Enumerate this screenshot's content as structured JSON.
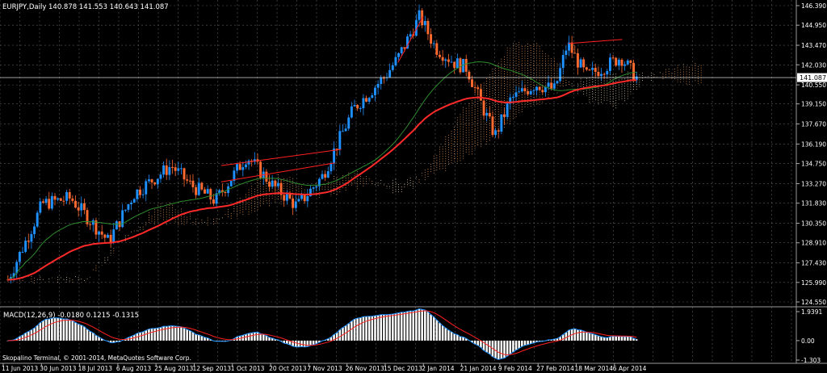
{
  "window": {
    "symbol_caption": "EURJPY,Daily",
    "ohlc_caption": "140.878 141.553 140.643 141.087",
    "copyright": "Skopalino Terminal, © 2001-2014, MetaQuotes Software Corp."
  },
  "colors": {
    "background": "#000000",
    "grid": "#5a5a5a",
    "bull_candle": "#1e90ff",
    "bear_candle": "#ff6a30",
    "ma_fast": "#2e8b2e",
    "ma_slow": "#ff2a2a",
    "cloud_a": "#f4a460",
    "cloud_b": "#f5deb3",
    "macd_line": "#1e90ff",
    "signal_line": "#ff2020",
    "histogram": "#ffffff",
    "price_label": "#ffffff"
  },
  "main_pane": {
    "current_price": "141.087",
    "price_axis_labels": [
      "146.390",
      "144.950",
      "143.470",
      "142.030",
      "140.550",
      "139.150",
      "137.670",
      "136.190",
      "134.750",
      "133.270",
      "131.830",
      "130.350",
      "128.910",
      "127.430",
      "125.990",
      "124.550"
    ]
  },
  "macd_pane": {
    "caption": "MACD(12,26,9) -0.0180 0.1215 -0.1315",
    "axis_labels": [
      "1.9391",
      "0.00",
      "-1.303"
    ]
  },
  "time_axis": {
    "labels": [
      "11 Jun 2013",
      "30 Jun 2013",
      "18 Jul 2013",
      "6 Aug 2013",
      "25 Aug 2013",
      "12 Sep 2013",
      "1 Oct 2013",
      "20 Oct 2013",
      "7 Nov 2013",
      "26 Nov 2013",
      "15 Dec 2013",
      "2 Jan 2014",
      "21 Jan 2014",
      "9 Feb 2014",
      "27 Feb 2014",
      "18 Mar 2014",
      "6 Apr 2014"
    ]
  },
  "chart_data": {
    "type": "candlestick",
    "instrument": "EURJPY",
    "timeframe": "Daily",
    "ylim": [
      124.55,
      146.39
    ],
    "last": {
      "open": 140.878,
      "high": 141.553,
      "low": 140.643,
      "close": 141.087
    },
    "close_series_approx": [
      {
        "date": "11 Jun 2013",
        "close": 127.5
      },
      {
        "date": "30 Jun 2013",
        "close": 130.0
      },
      {
        "date": "18 Jul 2013",
        "close": 131.5
      },
      {
        "date": "6 Aug 2013",
        "close": 129.6
      },
      {
        "date": "25 Aug 2013",
        "close": 131.0
      },
      {
        "date": "12 Sep 2013",
        "close": 133.8
      },
      {
        "date": "1 Oct 2013",
        "close": 132.0
      },
      {
        "date": "20 Oct 2013",
        "close": 134.3
      },
      {
        "date": "7 Nov 2013",
        "close": 132.5
      },
      {
        "date": "26 Nov 2013",
        "close": 139.0
      },
      {
        "date": "15 Dec 2013",
        "close": 142.0
      },
      {
        "date": "2 Jan 2014",
        "close": 144.0
      },
      {
        "date": "21 Jan 2014",
        "close": 141.5
      },
      {
        "date": "9 Feb 2014",
        "close": 139.5
      },
      {
        "date": "27 Feb 2014",
        "close": 140.0
      },
      {
        "date": "18 Mar 2014",
        "close": 141.0
      },
      {
        "date": "6 Apr 2014",
        "close": 141.087
      }
    ],
    "macd": {
      "main": -0.018,
      "signal": 0.1215,
      "histogram": -0.1315,
      "ylim": [
        -1.303,
        1.9391
      ]
    }
  }
}
